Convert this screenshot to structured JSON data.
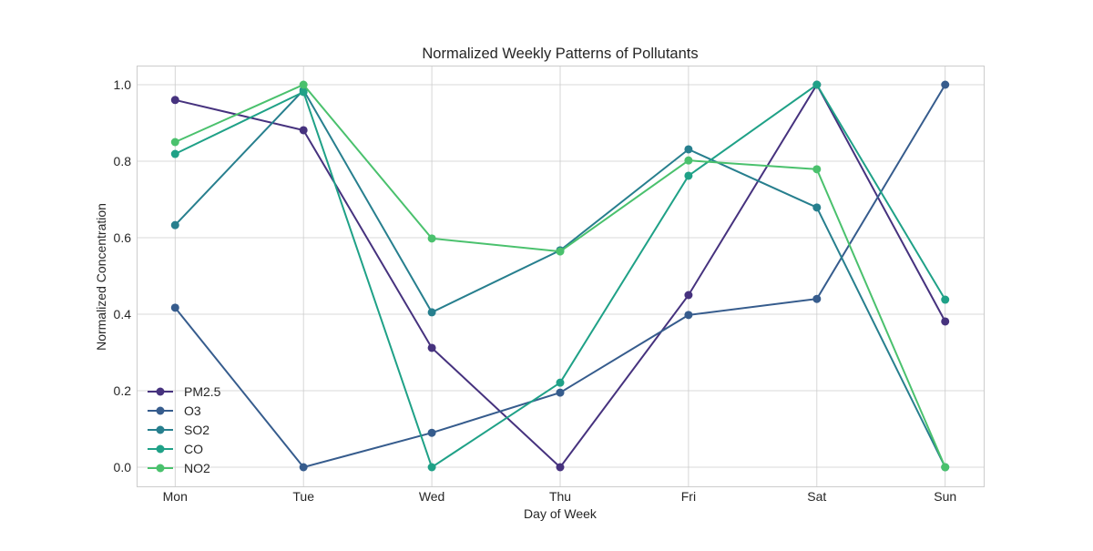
{
  "chart_data": {
    "type": "line",
    "title": "Normalized Weekly Patterns of Pollutants",
    "xlabel": "Day of Week",
    "ylabel": "Normalized Concentration",
    "categories": [
      "Mon",
      "Tue",
      "Wed",
      "Thu",
      "Fri",
      "Sat",
      "Sun"
    ],
    "ylim": [
      -0.05,
      1.05
    ],
    "yticks": [
      0.0,
      0.2,
      0.4,
      0.6,
      0.8,
      1.0
    ],
    "ytick_labels": [
      "0.0",
      "0.2",
      "0.4",
      "0.6",
      "0.8",
      "1.0"
    ],
    "grid": true,
    "legend_position": "lower-left",
    "series": [
      {
        "name": "PM2.5",
        "color": "#46327e",
        "values": [
          0.96,
          0.881,
          0.312,
          0.0,
          0.45,
          1.0,
          0.381
        ]
      },
      {
        "name": "O3",
        "color": "#365c8d",
        "values": [
          0.417,
          0.0,
          0.09,
          0.195,
          0.398,
          0.44,
          1.0
        ]
      },
      {
        "name": "SO2",
        "color": "#277f8e",
        "values": [
          0.633,
          0.986,
          0.405,
          0.567,
          0.831,
          0.679,
          0.0
        ]
      },
      {
        "name": "CO",
        "color": "#1fa187",
        "values": [
          0.819,
          0.981,
          0.0,
          0.221,
          0.762,
          1.0,
          0.438
        ]
      },
      {
        "name": "NO2",
        "color": "#4ac16d",
        "values": [
          0.85,
          1.0,
          0.598,
          0.564,
          0.802,
          0.779,
          0.0
        ]
      }
    ]
  }
}
